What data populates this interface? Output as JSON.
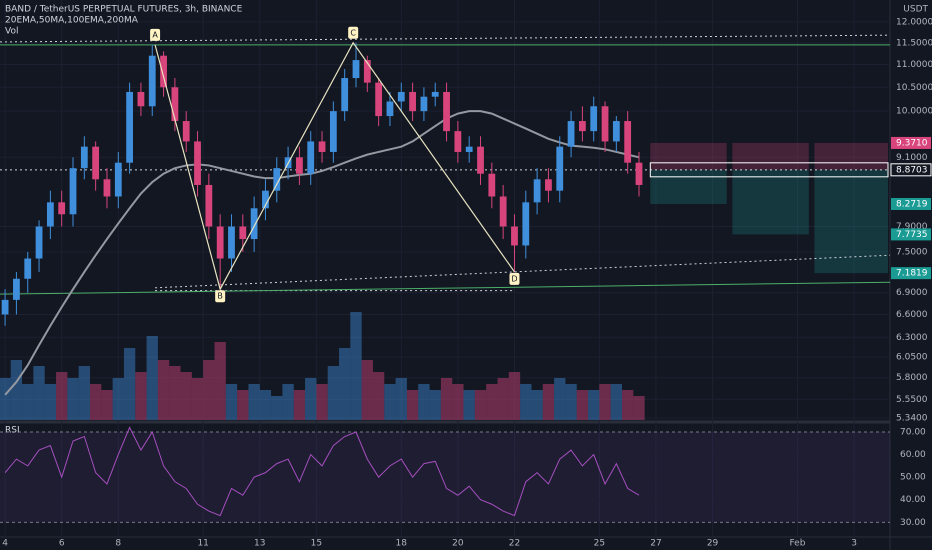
{
  "chart_data": {
    "type": "candlestick",
    "title": "BAND / TetherUS PERPETUAL FUTURES, 3h, BINANCE",
    "indicators_label": "20EMA,50MA,100EMA,200MA",
    "volume_label": "Vol",
    "rsi_label": "RSI",
    "currency": "USDT",
    "log_scale": true,
    "up_color": "#3f8fdc",
    "down_color": "#d8457c",
    "ma_color": "#9598a1",
    "rsi_color": "#a64fbf",
    "xlim": [
      3.82,
      35.27
    ],
    "xticks": [
      4,
      6,
      8,
      11,
      13,
      15,
      18,
      20,
      22,
      25,
      27,
      29,
      {
        "value": 32,
        "label": "Feb"
      },
      {
        "value": 34,
        "label": "3"
      }
    ],
    "ylim": [
      5.32,
      12.55
    ],
    "yticks": [
      {
        "value": 12,
        "label": "12.0000"
      },
      {
        "value": 11.5,
        "label": "11.5000"
      },
      {
        "value": 11,
        "label": "11.0000"
      },
      {
        "value": 10.5,
        "label": "10.5000"
      },
      {
        "value": 10,
        "label": "10.0000"
      },
      {
        "value": 9.1,
        "label": "9.1000"
      },
      {
        "value": 7.9,
        "label": "7.9000"
      },
      {
        "value": 7.5,
        "label": "7.5000"
      },
      {
        "value": 6.9,
        "label": "6.9000"
      },
      {
        "value": 6.6,
        "label": "6.6000"
      },
      {
        "value": 6.3,
        "label": "6.3000"
      },
      {
        "value": 6.05,
        "label": "6.0500"
      },
      {
        "value": 5.8,
        "label": "5.8000"
      },
      {
        "value": 5.55,
        "label": "5.5500"
      },
      {
        "value": 5.34,
        "label": "5.3400"
      }
    ],
    "x": [
      4.0,
      4.4,
      4.8,
      5.2,
      5.6,
      6.0,
      6.4,
      6.8,
      7.2,
      7.6,
      8.0,
      8.4,
      8.8,
      9.2,
      9.6,
      10.0,
      10.4,
      10.8,
      11.2,
      11.6,
      12.0,
      12.4,
      12.8,
      13.2,
      13.6,
      14.0,
      14.4,
      14.8,
      15.2,
      15.6,
      16.0,
      16.4,
      16.8,
      17.2,
      17.6,
      18.0,
      18.4,
      18.8,
      19.2,
      19.6,
      20.0,
      20.4,
      20.8,
      21.2,
      21.6,
      22.0,
      22.4,
      22.8,
      23.2,
      23.6,
      24.0,
      24.4,
      24.8,
      25.2,
      25.6,
      26.0,
      26.4
    ],
    "open": [
      6.6,
      6.8,
      7.1,
      7.4,
      7.9,
      8.3,
      8.1,
      8.9,
      9.3,
      8.7,
      8.4,
      9.0,
      10.4,
      10.1,
      11.2,
      10.5,
      9.8,
      9.4,
      8.6,
      7.9,
      7.4,
      7.9,
      7.7,
      8.2,
      8.5,
      8.9,
      9.1,
      8.8,
      9.4,
      9.2,
      10.0,
      10.7,
      11.1,
      10.6,
      9.9,
      10.2,
      10.4,
      10.0,
      10.3,
      10.4,
      9.6,
      9.2,
      9.3,
      8.8,
      8.4,
      7.9,
      7.6,
      8.3,
      8.7,
      8.5,
      9.3,
      9.8,
      9.6,
      10.1,
      9.4,
      9.8,
      9.0
    ],
    "high": [
      6.95,
      7.2,
      7.5,
      8.0,
      8.5,
      8.5,
      9.1,
      9.5,
      9.4,
      8.9,
      9.2,
      10.6,
      10.6,
      11.45,
      11.3,
      10.7,
      10.0,
      9.6,
      8.8,
      8.1,
      8.1,
      8.1,
      8.4,
      8.7,
      9.1,
      9.3,
      9.3,
      9.6,
      9.6,
      10.2,
      10.9,
      11.5,
      11.2,
      10.7,
      10.4,
      10.6,
      10.6,
      10.5,
      10.6,
      10.6,
      9.8,
      9.5,
      9.5,
      9.0,
      8.6,
      8.1,
      8.5,
      8.9,
      8.9,
      9.5,
      10.0,
      10.1,
      10.3,
      10.2,
      9.9,
      10.0,
      9.2
    ],
    "low": [
      6.45,
      6.6,
      6.9,
      7.2,
      7.7,
      7.9,
      7.9,
      8.7,
      8.5,
      8.2,
      8.2,
      8.8,
      9.9,
      9.9,
      10.3,
      9.6,
      9.2,
      8.4,
      7.7,
      6.95,
      7.2,
      7.5,
      7.5,
      8.0,
      8.3,
      8.7,
      8.6,
      8.6,
      9.0,
      9.0,
      9.8,
      10.5,
      10.4,
      9.7,
      9.7,
      10.0,
      9.8,
      9.8,
      10.1,
      9.4,
      9.0,
      9.0,
      8.6,
      8.2,
      7.7,
      7.2,
      7.4,
      8.1,
      8.3,
      8.3,
      9.1,
      9.4,
      9.4,
      9.2,
      9.2,
      8.8,
      8.4
    ],
    "close": [
      6.8,
      7.1,
      7.4,
      7.9,
      8.3,
      8.1,
      8.9,
      9.3,
      8.7,
      8.4,
      9.0,
      10.4,
      10.1,
      11.2,
      10.5,
      9.8,
      9.4,
      8.6,
      7.9,
      7.4,
      7.9,
      7.7,
      8.2,
      8.5,
      8.9,
      9.1,
      8.8,
      9.4,
      9.2,
      10.0,
      10.7,
      11.1,
      10.6,
      9.9,
      10.2,
      10.4,
      10.0,
      10.3,
      10.4,
      9.6,
      9.2,
      9.3,
      8.8,
      8.4,
      7.9,
      7.6,
      8.3,
      8.7,
      8.5,
      9.3,
      9.8,
      9.6,
      10.1,
      9.4,
      9.8,
      9.0,
      8.6
    ],
    "ma_values": [
      5.6,
      5.75,
      5.95,
      6.2,
      6.45,
      6.7,
      6.95,
      7.2,
      7.45,
      7.7,
      7.95,
      8.2,
      8.45,
      8.65,
      8.8,
      8.9,
      8.95,
      8.97,
      8.95,
      8.9,
      8.85,
      8.8,
      8.75,
      8.72,
      8.72,
      8.75,
      8.78,
      8.8,
      8.85,
      8.92,
      9.0,
      9.08,
      9.15,
      9.2,
      9.25,
      9.3,
      9.4,
      9.55,
      9.7,
      9.85,
      9.95,
      10.0,
      10.0,
      9.95,
      9.85,
      9.75,
      9.65,
      9.55,
      9.45,
      9.38,
      9.32,
      9.3,
      9.28,
      9.25,
      9.2,
      9.15,
      9.1
    ],
    "volume": [
      3.5,
      5,
      3,
      4.5,
      3,
      4,
      3.5,
      4.5,
      3,
      2.5,
      3.5,
      6,
      4,
      7,
      5,
      4.5,
      4,
      3.5,
      5,
      6.5,
      3,
      2.5,
      3,
      2.5,
      2,
      3,
      2.5,
      3.5,
      3,
      4.5,
      6,
      9,
      5,
      4,
      3,
      3.5,
      2.5,
      3,
      2.5,
      3.5,
      3,
      2.5,
      2.5,
      3,
      3.5,
      4,
      3,
      2.5,
      3,
      3.5,
      3,
      2.5,
      2.5,
      3,
      3,
      2.5,
      2
    ],
    "vol_ylim": [
      0,
      10
    ],
    "rsi": [
      52,
      58,
      55,
      62,
      64,
      50,
      66,
      68,
      52,
      47,
      60,
      72,
      62,
      70,
      55,
      48,
      45,
      38,
      35,
      33,
      45,
      42,
      50,
      52,
      56,
      58,
      48,
      60,
      55,
      64,
      68,
      70,
      58,
      50,
      55,
      58,
      50,
      56,
      57,
      45,
      42,
      46,
      40,
      38,
      35,
      33,
      48,
      52,
      47,
      58,
      62,
      55,
      60,
      47,
      56,
      45,
      42
    ],
    "rsi_ylim": [
      23.5,
      73.1
    ],
    "rsi_yticks": [
      {
        "value": 70,
        "label": "70.00"
      },
      {
        "value": 60,
        "label": "60.00"
      },
      {
        "value": 50,
        "label": "50.00"
      },
      {
        "value": 40,
        "label": "40.00"
      },
      {
        "value": 30,
        "label": "30.00"
      }
    ],
    "pattern": {
      "x": [
        9.3,
        11.6,
        16.3,
        22.0
      ],
      "y": [
        11.45,
        6.95,
        11.5,
        7.2
      ],
      "labels": [
        "A",
        "B",
        "C",
        "D"
      ]
    },
    "trendlines": [
      {
        "x": [
          3.82,
          35.27
        ],
        "y": [
          11.52,
          11.68
        ],
        "color": "#cfd2da",
        "dashed": true
      },
      {
        "x": [
          3.82,
          35.27
        ],
        "y": [
          11.45,
          11.45
        ],
        "color": "#4caf6a",
        "dashed": false
      },
      {
        "x": [
          9.3,
          22.0
        ],
        "y": [
          6.93,
          6.93
        ],
        "color": "#cfd2da",
        "dashed": true
      },
      {
        "x": [
          9.3,
          35.27
        ],
        "y": [
          6.97,
          7.45
        ],
        "color": "#cfd2da",
        "dashed": true
      },
      {
        "x": [
          3.82,
          35.27
        ],
        "y": [
          6.88,
          7.05
        ],
        "color": "#4caf6a",
        "dashed": false
      },
      {
        "x": [
          3.82,
          35.27
        ],
        "y": [
          8.87,
          8.87
        ],
        "color": "#cfd2da",
        "dashed": true
      }
    ],
    "positions": [
      {
        "x": [
          26.8,
          29.5
        ],
        "entry": 8.8703,
        "stop": 9.371,
        "target": 8.2719
      },
      {
        "x": [
          29.7,
          32.4
        ],
        "entry": 8.8703,
        "stop": 9.371,
        "target": 7.7735
      },
      {
        "x": [
          32.6,
          35.2
        ],
        "entry": 8.8703,
        "stop": 9.371,
        "target": 7.1819
      }
    ],
    "price_labels": [
      {
        "value": 9.371,
        "label": "9.3710",
        "color": "#d8457c"
      },
      {
        "value": 8.8703,
        "label": "8.8703",
        "color": "#ffffff"
      },
      {
        "value": 8.2719,
        "label": "8.2719",
        "color": "#1a9b94"
      },
      {
        "value": 7.7735,
        "label": "7.7735",
        "color": "#1a9b94"
      },
      {
        "value": 7.1819,
        "label": "7.1819",
        "color": "#1a9b94"
      }
    ]
  }
}
